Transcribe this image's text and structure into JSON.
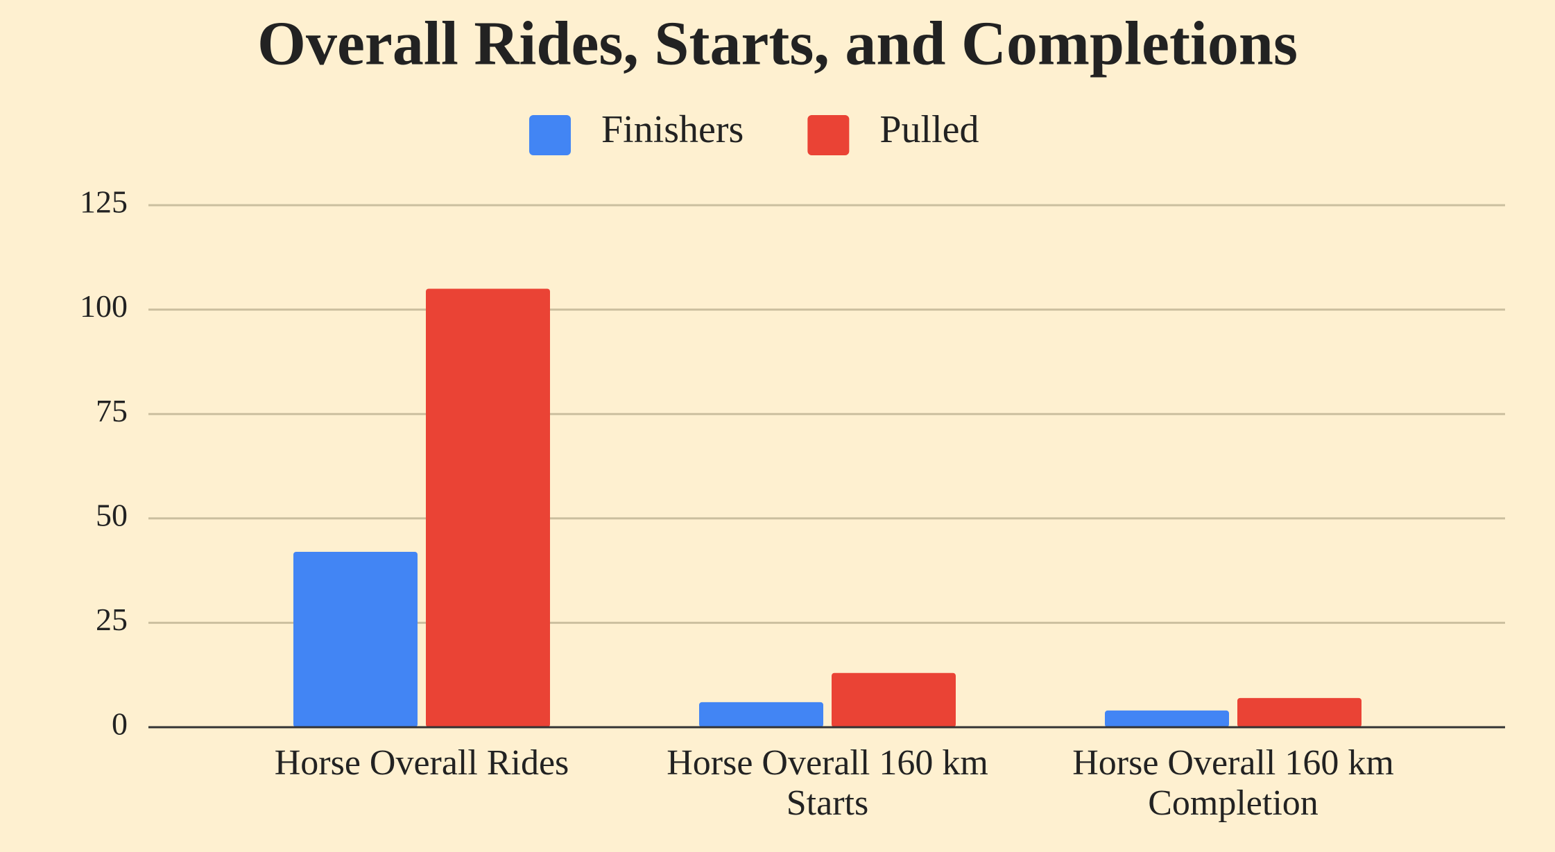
{
  "chart_data": {
    "type": "bar",
    "title": "Overall Rides, Starts, and Completions",
    "categories": [
      "Horse Overall Rides",
      "Horse Overall 160 km Starts",
      "Horse Overall 160 km Completion"
    ],
    "series": [
      {
        "name": "Finishers",
        "color": "#4285f4",
        "values": [
          42,
          6,
          4
        ]
      },
      {
        "name": "Pulled",
        "color": "#ea4335",
        "values": [
          105,
          13,
          7
        ]
      }
    ],
    "ylim": [
      0,
      125
    ],
    "yticks": [
      0,
      25,
      50,
      75,
      100,
      125
    ],
    "grid": true,
    "legend": "top"
  }
}
